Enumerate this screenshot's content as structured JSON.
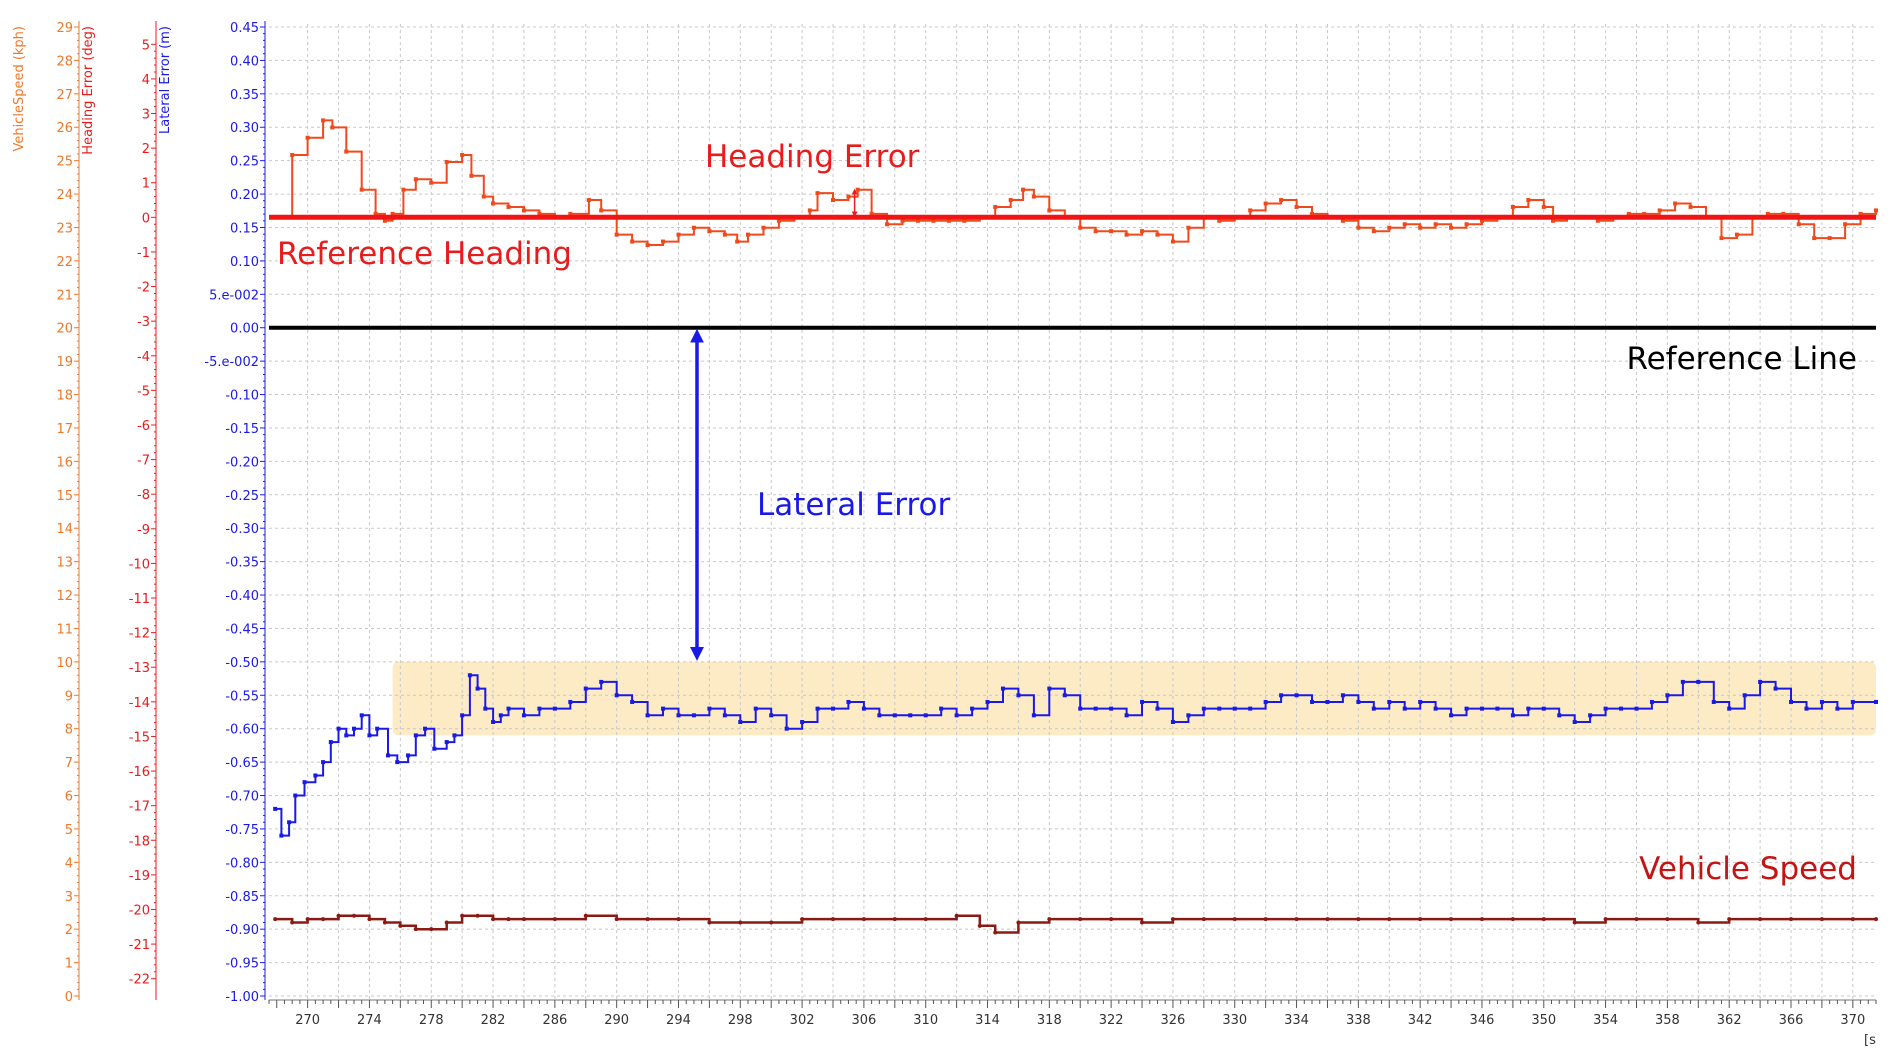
{
  "chart_data": {
    "type": "line",
    "x_axis": {
      "range": [
        267.5,
        371.5
      ],
      "ticks": [
        270,
        272,
        274,
        276,
        278,
        280,
        282,
        284,
        286,
        288,
        290,
        292,
        294,
        296,
        298,
        300,
        302,
        304,
        306,
        308,
        310,
        312,
        314,
        316,
        318,
        320,
        322,
        324,
        326,
        328,
        330,
        332,
        334,
        336,
        338,
        340,
        342,
        344,
        346,
        348,
        350,
        352,
        354,
        356,
        358,
        360,
        362,
        364,
        366,
        368,
        370
      ],
      "tick_labels": [
        "270",
        "274",
        "278",
        "282",
        "286",
        "290",
        "294",
        "298",
        "302",
        "306",
        "310",
        "314",
        "318",
        "322",
        "326",
        "330",
        "334",
        "338",
        "342",
        "346",
        "350",
        "354",
        "358",
        "362",
        "366",
        "370"
      ],
      "unit_label": "[s",
      "grid": true
    },
    "axes": [
      {
        "id": "speed",
        "title": "VehicleSpeed (kph)",
        "color": "#F07828",
        "range": [
          0,
          29
        ],
        "tick_labels": [
          "29",
          "28",
          "27",
          "26",
          "25",
          "24",
          "23",
          "22",
          "21",
          "20",
          "19",
          "18",
          "17",
          "16",
          "15",
          "14",
          "13",
          "12",
          "11",
          "10",
          "9",
          "8",
          "7",
          "6",
          "5",
          "4",
          "3",
          "2",
          "1",
          "0"
        ]
      },
      {
        "id": "heading",
        "title": "Heading Error (deg)",
        "color": "#E81C1C",
        "range": [
          -22.5,
          5.5
        ],
        "tick_labels": [
          "5",
          "4",
          "3",
          "2",
          "1",
          "0",
          "-1",
          "-2",
          "-3",
          "-4",
          "-5",
          "-6",
          "-7",
          "-8",
          "-9",
          "-10",
          "-11",
          "-12",
          "-13",
          "-14",
          "-15",
          "-16",
          "-17",
          "-18",
          "-19",
          "-20",
          "-21",
          "-22"
        ]
      },
      {
        "id": "lateral",
        "title": "Lateral Error (m)",
        "color": "#1A1AE6",
        "range": [
          -1.0,
          0.45
        ],
        "tick_labels": [
          "0.45",
          "0.40",
          "0.35",
          "0.30",
          "0.25",
          "0.20",
          "0.15",
          "0.10",
          "5.e-002",
          "0.00",
          "-5.e-002",
          "-0.10",
          "-0.15",
          "-0.20",
          "-0.25",
          "-0.30",
          "-0.35",
          "-0.40",
          "-0.45",
          "-0.50",
          "-0.55",
          "-0.60",
          "-0.65",
          "-0.70",
          "-0.75",
          "-0.80",
          "-0.85",
          "-0.90",
          "-0.95",
          "-1.00"
        ]
      }
    ],
    "series": [
      {
        "name": "Heading Error",
        "axis": "heading",
        "color": "#F04A1C",
        "x": [
          267.9,
          268.3,
          269.0,
          270.0,
          271.0,
          271.6,
          272.5,
          273.5,
          274.4,
          275.0,
          275.5,
          276.2,
          277.0,
          278.0,
          279.0,
          280.0,
          280.6,
          281.4,
          282.0,
          283.0,
          284.0,
          285.0,
          286.0,
          287.0,
          288.2,
          289.0,
          290.0,
          291.0,
          292.0,
          293.0,
          294.0,
          295.0,
          296.0,
          297.0,
          297.8,
          298.5,
          299.5,
          300.5,
          301.5,
          302.5,
          303.0,
          304.0,
          305.0,
          305.6,
          306.5,
          307.5,
          308.5,
          309.5,
          310.5,
          311.5,
          312.5,
          313.5,
          314.5,
          315.5,
          316.3,
          317.0,
          318.0,
          319.0,
          320.0,
          321.0,
          322.0,
          323.0,
          324.0,
          325.0,
          326.0,
          327.0,
          328.0,
          329.0,
          330.0,
          331.0,
          332.0,
          333.0,
          334.0,
          335.0,
          336.0,
          337.0,
          338.0,
          339.0,
          340.0,
          341.0,
          342.0,
          343.0,
          344.0,
          345.0,
          346.0,
          347.0,
          348.0,
          349.0,
          350.0,
          350.6,
          351.5,
          352.5,
          353.5,
          354.5,
          355.5,
          356.5,
          357.5,
          358.5,
          359.5,
          360.5,
          361.5,
          362.5,
          363.5,
          364.5,
          365.5,
          366.5,
          367.5,
          368.5,
          369.5,
          370.5,
          371.5
        ],
        "y": [
          0,
          0,
          1.8,
          2.3,
          2.8,
          2.6,
          1.9,
          0.8,
          0.1,
          -0.1,
          0.1,
          0.8,
          1.1,
          1.0,
          1.6,
          1.8,
          1.2,
          0.6,
          0.4,
          0.3,
          0.2,
          0.1,
          0.0,
          0.1,
          0.5,
          0.2,
          -0.5,
          -0.7,
          -0.8,
          -0.7,
          -0.5,
          -0.3,
          -0.4,
          -0.5,
          -0.7,
          -0.5,
          -0.3,
          -0.1,
          0.0,
          0.2,
          0.7,
          0.5,
          0.6,
          0.8,
          0.1,
          -0.2,
          -0.1,
          -0.1,
          -0.1,
          -0.1,
          -0.1,
          0.0,
          0.3,
          0.5,
          0.8,
          0.6,
          0.2,
          0.0,
          -0.3,
          -0.4,
          -0.4,
          -0.5,
          -0.4,
          -0.5,
          -0.7,
          -0.3,
          0.0,
          -0.1,
          0.0,
          0.2,
          0.4,
          0.5,
          0.3,
          0.1,
          0.0,
          -0.1,
          -0.3,
          -0.4,
          -0.3,
          -0.2,
          -0.3,
          -0.2,
          -0.3,
          -0.2,
          -0.1,
          0.0,
          0.3,
          0.5,
          0.3,
          -0.1,
          0.0,
          0.0,
          -0.1,
          0.0,
          0.1,
          0.1,
          0.2,
          0.4,
          0.3,
          0.0,
          -0.6,
          -0.5,
          0.0,
          0.1,
          0.1,
          -0.2,
          -0.6,
          -0.6,
          -0.2,
          0.1,
          0.2
        ]
      },
      {
        "name": "Reference Heading",
        "axis": "heading",
        "color": "#F01414",
        "x": [
          267.5,
          371.5
        ],
        "y": [
          0,
          0
        ]
      },
      {
        "name": "Reference Line",
        "axis": "lateral",
        "color": "#000000",
        "x": [
          267.5,
          371.5
        ],
        "y": [
          0,
          0
        ]
      },
      {
        "name": "Lateral Error",
        "axis": "lateral",
        "color": "#1A1AE6",
        "x": [
          267.9,
          268.3,
          268.8,
          269.2,
          269.8,
          270.5,
          271.0,
          271.5,
          272.0,
          272.5,
          273.0,
          273.5,
          274.0,
          274.5,
          275.2,
          275.8,
          276.5,
          277.0,
          277.6,
          278.2,
          279.0,
          279.5,
          280.0,
          280.5,
          281.0,
          281.5,
          282.0,
          282.5,
          283.0,
          284.0,
          285.0,
          286.0,
          287.0,
          288.0,
          289.0,
          290.0,
          291.0,
          292.0,
          293.0,
          294.0,
          295.0,
          296.0,
          297.0,
          298.0,
          299.0,
          300.0,
          301.0,
          302.0,
          303.0,
          304.0,
          305.0,
          306.0,
          307.0,
          308.0,
          309.0,
          310.0,
          311.0,
          312.0,
          313.0,
          314.0,
          315.0,
          316.0,
          317.0,
          318.0,
          319.0,
          320.0,
          321.0,
          322.0,
          323.0,
          324.0,
          325.0,
          326.0,
          327.0,
          328.0,
          329.0,
          330.0,
          331.0,
          332.0,
          333.0,
          334.0,
          335.0,
          336.0,
          337.0,
          338.0,
          339.0,
          340.0,
          341.0,
          342.0,
          343.0,
          344.0,
          345.0,
          346.0,
          347.0,
          348.0,
          349.0,
          350.0,
          351.0,
          352.0,
          353.0,
          354.0,
          355.0,
          356.0,
          357.0,
          358.0,
          359.0,
          360.0,
          361.0,
          362.0,
          363.0,
          364.0,
          365.0,
          366.0,
          367.0,
          368.0,
          369.0,
          370.0,
          371.5
        ],
        "y": [
          -0.72,
          -0.76,
          -0.74,
          -0.7,
          -0.68,
          -0.67,
          -0.65,
          -0.62,
          -0.6,
          -0.61,
          -0.6,
          -0.58,
          -0.61,
          -0.6,
          -0.64,
          -0.65,
          -0.64,
          -0.61,
          -0.6,
          -0.63,
          -0.62,
          -0.61,
          -0.58,
          -0.52,
          -0.54,
          -0.57,
          -0.59,
          -0.58,
          -0.57,
          -0.58,
          -0.57,
          -0.57,
          -0.56,
          -0.54,
          -0.53,
          -0.55,
          -0.56,
          -0.58,
          -0.57,
          -0.58,
          -0.58,
          -0.57,
          -0.58,
          -0.59,
          -0.57,
          -0.58,
          -0.6,
          -0.59,
          -0.57,
          -0.57,
          -0.56,
          -0.57,
          -0.58,
          -0.58,
          -0.58,
          -0.58,
          -0.57,
          -0.58,
          -0.57,
          -0.56,
          -0.54,
          -0.55,
          -0.58,
          -0.54,
          -0.55,
          -0.57,
          -0.57,
          -0.57,
          -0.58,
          -0.56,
          -0.57,
          -0.59,
          -0.58,
          -0.57,
          -0.57,
          -0.57,
          -0.57,
          -0.56,
          -0.55,
          -0.55,
          -0.56,
          -0.56,
          -0.55,
          -0.56,
          -0.57,
          -0.56,
          -0.57,
          -0.56,
          -0.57,
          -0.58,
          -0.57,
          -0.57,
          -0.57,
          -0.58,
          -0.57,
          -0.57,
          -0.58,
          -0.59,
          -0.58,
          -0.57,
          -0.57,
          -0.57,
          -0.56,
          -0.55,
          -0.53,
          -0.53,
          -0.56,
          -0.57,
          -0.55,
          -0.53,
          -0.54,
          -0.56,
          -0.57,
          -0.56,
          -0.57,
          -0.56,
          -0.56
        ]
      },
      {
        "name": "Vehicle Speed",
        "axis": "speed",
        "color": "#8B1A14",
        "x": [
          267.9,
          269.0,
          270.0,
          271.0,
          272.0,
          273.0,
          274.0,
          275.0,
          276.0,
          277.0,
          278.0,
          279.0,
          280.0,
          281.0,
          282.0,
          283.0,
          284.0,
          286.0,
          288.0,
          290.0,
          292.0,
          294.0,
          296.0,
          298.0,
          300.0,
          302.0,
          304.0,
          306.0,
          308.0,
          310.0,
          312.0,
          313.5,
          314.5,
          316.0,
          318.0,
          320.0,
          322.0,
          324.0,
          326.0,
          328.0,
          330.0,
          332.0,
          334.0,
          336.0,
          338.0,
          340.0,
          342.0,
          344.0,
          346.0,
          348.0,
          350.0,
          352.0,
          354.0,
          356.0,
          358.0,
          360.0,
          362.0,
          364.0,
          366.0,
          368.0,
          370.0,
          371.5
        ],
        "y": [
          2.3,
          2.2,
          2.3,
          2.3,
          2.4,
          2.4,
          2.3,
          2.2,
          2.1,
          2.0,
          2.0,
          2.2,
          2.4,
          2.4,
          2.3,
          2.3,
          2.3,
          2.3,
          2.4,
          2.3,
          2.3,
          2.3,
          2.2,
          2.2,
          2.2,
          2.3,
          2.3,
          2.3,
          2.3,
          2.3,
          2.4,
          2.1,
          1.9,
          2.2,
          2.3,
          2.3,
          2.3,
          2.2,
          2.3,
          2.3,
          2.3,
          2.3,
          2.3,
          2.3,
          2.3,
          2.3,
          2.3,
          2.3,
          2.3,
          2.3,
          2.3,
          2.2,
          2.3,
          2.3,
          2.3,
          2.2,
          2.3,
          2.3,
          2.3,
          2.3,
          2.3,
          2.3
        ]
      }
    ],
    "annotations": [
      {
        "text": "Heading Error",
        "color": "#E81C1C"
      },
      {
        "text": "Reference Heading",
        "color": "#E81C1C"
      },
      {
        "text": "Reference Line",
        "color": "#000000"
      },
      {
        "text": "Lateral Error",
        "color": "#1A1AE6"
      },
      {
        "text": "Vehicle Speed",
        "color": "#C41414"
      }
    ],
    "highlight_band": {
      "axis": "lateral",
      "x_range": [
        275.5,
        371.5
      ],
      "y_range": [
        -0.61,
        -0.5
      ],
      "color": "#FCEBC4"
    }
  }
}
